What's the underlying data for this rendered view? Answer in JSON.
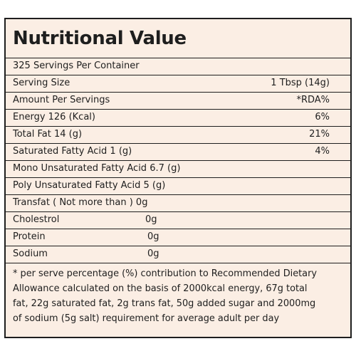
{
  "label": {
    "title": "Nutritional Value",
    "servings_per_container": "325 Servings Per Container",
    "serving_size": {
      "label": "Serving Size",
      "value": "1 Tbsp (14g)"
    },
    "amount_header": {
      "label": "Amount Per Servings",
      "rda": "*RDA%"
    },
    "rows": [
      {
        "label": "Energy 126 (Kcal)",
        "rda": "6%"
      },
      {
        "label": "Total Fat 14 (g)",
        "rda": "21%"
      },
      {
        "label": "Saturated Fatty Acid 1 (g)",
        "rda": "4%"
      },
      {
        "label": "Mono Unsaturated Fatty Acid 6.7 (g)"
      },
      {
        "label": "Poly Unsaturated Fatty Acid 5 (g)"
      },
      {
        "label": "Transfat ( Not more than ) 0g"
      },
      {
        "label": "Cholestrol",
        "value": "0g"
      },
      {
        "label": "Protein",
        "value": "0g"
      },
      {
        "label": "Sodium",
        "value": "0g"
      }
    ],
    "footnote": [
      "* per serve percentage (%) contribution to Recommended Dietary",
      "Allowance calculated on the basis of 2000kcal energy, 67g total",
      "fat, 22g saturated fat, 2g trans fat, 50g added sugar and 2000mg",
      "of sodium (5g salt) requirement for average adult per day"
    ]
  },
  "colors": {
    "panel_background": "#fbeee4",
    "border_and_text": "#1e1e1e"
  }
}
